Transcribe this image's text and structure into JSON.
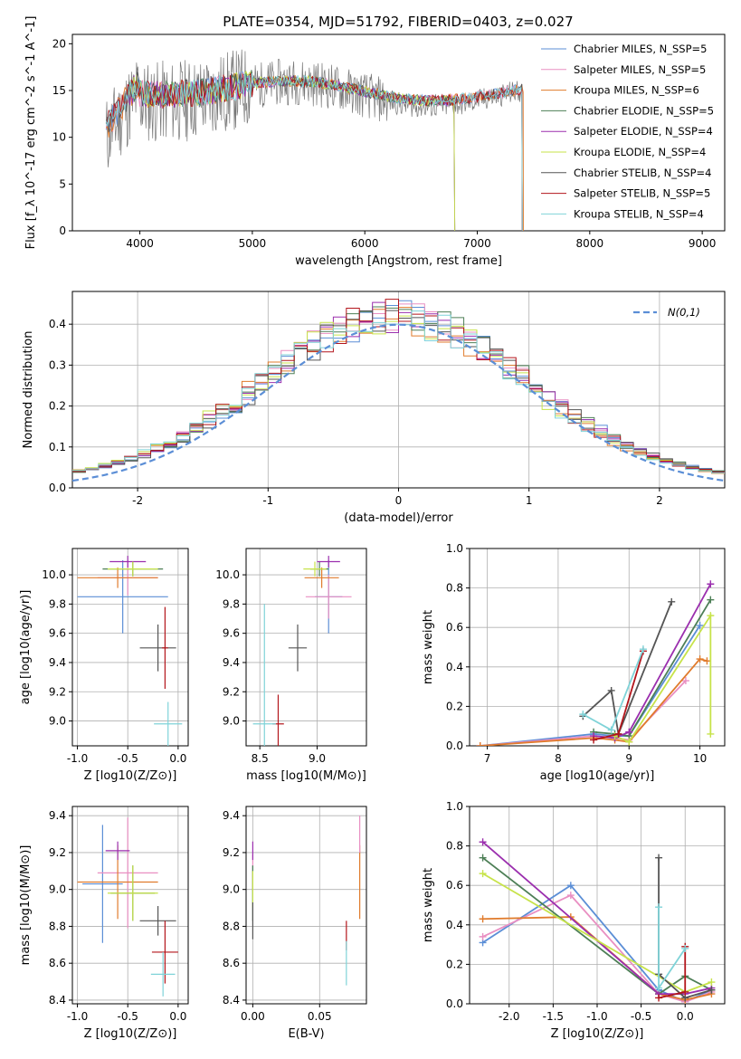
{
  "figure_title": "PLATE=0354, MJD=51792, FIBERID=0403, z=0.027",
  "colors": {
    "chabrier_miles": "#5b8ed6",
    "salpeter_miles": "#e98fc2",
    "kroupa_miles": "#e07b2c",
    "chabrier_elodie": "#4d7f56",
    "salpeter_elodie": "#9b2fae",
    "kroupa_elodie": "#c7e34a",
    "chabrier_stelib": "#555555",
    "salpeter_stelib": "#b3151b",
    "kroupa_stelib": "#7fd3d8",
    "data": "#777777"
  },
  "chart_data": [
    {
      "id": "spectrum",
      "type": "line",
      "title": "PLATE=0354, MJD=51792, FIBERID=0403, z=0.027",
      "xlabel": "wavelength [Angstrom, rest frame]",
      "ylabel": "Flux [f_λ 10^-17 erg cm^-2 s^-1 A^-1]",
      "xlim": [
        3400,
        9200
      ],
      "ylim": [
        0,
        21
      ],
      "xticks": [
        4000,
        5000,
        6000,
        7000,
        8000,
        9000
      ],
      "yticks": [
        0,
        5,
        10,
        15,
        20
      ],
      "legend_placement": "top-right",
      "series": [
        {
          "name": "Chabrier MILES, N_SSP=5",
          "key": "chabrier_miles",
          "x": [
            3700,
            7400
          ],
          "y": [
            14.5,
            14.5
          ]
        },
        {
          "name": "Salpeter MILES, N_SSP=5",
          "key": "salpeter_miles",
          "x": [
            3700,
            7400
          ],
          "y": [
            14.5,
            14.5
          ]
        },
        {
          "name": "Kroupa MILES, N_SSP=6",
          "key": "kroupa_miles",
          "x": [
            3700,
            7410
          ],
          "y": [
            14.5,
            14.5
          ]
        },
        {
          "name": "Chabrier ELODIE, N_SSP=5",
          "key": "chabrier_elodie",
          "x": [
            3900,
            6800
          ],
          "y": [
            15.0,
            15.0
          ]
        },
        {
          "name": "Salpeter ELODIE, N_SSP=4",
          "key": "salpeter_elodie",
          "x": [
            3900,
            6800
          ],
          "y": [
            15.0,
            15.0
          ]
        },
        {
          "name": "Kroupa ELODIE, N_SSP=4",
          "key": "kroupa_elodie",
          "x": [
            3900,
            6800
          ],
          "y": [
            15.0,
            15.0
          ]
        },
        {
          "name": "Chabrier STELIB, N_SSP=4",
          "key": "chabrier_stelib",
          "x": [
            3700,
            7400
          ],
          "y": [
            14.8,
            14.8
          ]
        },
        {
          "name": "Salpeter STELIB, N_SSP=5",
          "key": "salpeter_stelib",
          "x": [
            3700,
            7400
          ],
          "y": [
            14.8,
            14.8
          ]
        },
        {
          "name": "Kroupa STELIB, N_SSP=4",
          "key": "kroupa_stelib",
          "x": [
            3700,
            7400
          ],
          "y": [
            14.8,
            14.8
          ]
        }
      ]
    },
    {
      "id": "residuals",
      "type": "line",
      "xlabel": "(data-model)/error",
      "ylabel": "Normed distribution",
      "xlim": [
        -2.5,
        2.5
      ],
      "ylim": [
        0,
        0.48
      ],
      "xticks": [
        -2,
        -1,
        0,
        1,
        2
      ],
      "yticks": [
        0.0,
        0.1,
        0.2,
        0.3,
        0.4
      ],
      "legend_placement": "top-right",
      "reference_name": "N(0,1)",
      "reference": {
        "mu": 0,
        "sigma": 1
      },
      "grid": true
    },
    {
      "id": "age_vs_Z",
      "type": "scatter",
      "xlabel": "Z [log10(Z/Z⊙)]",
      "ylabel": "age [log10(age/yr)]",
      "xlim": [
        -1.05,
        0.1
      ],
      "ylim": [
        8.83,
        10.18
      ],
      "xticks": [
        -1.0,
        -0.5,
        0.0
      ],
      "yticks": [
        9.0,
        9.2,
        9.4,
        9.6,
        9.8,
        10.0
      ],
      "grid": true,
      "points": [
        {
          "key": "chabrier_miles",
          "x": -0.55,
          "y": 9.85,
          "xerr": 0.45,
          "yerr": 0.25
        },
        {
          "key": "salpeter_miles",
          "x": -0.5,
          "y": 9.98,
          "xerr": 0.3,
          "yerr": 0.12
        },
        {
          "key": "kroupa_miles",
          "x": -0.6,
          "y": 9.98,
          "xerr": 0.4,
          "yerr": 0.07
        },
        {
          "key": "chabrier_elodie",
          "x": -0.45,
          "y": 10.04,
          "xerr": 0.3,
          "yerr": 0.05
        },
        {
          "key": "salpeter_elodie",
          "x": -0.5,
          "y": 10.09,
          "xerr": 0.18,
          "yerr": 0.04
        },
        {
          "key": "kroupa_elodie",
          "x": -0.45,
          "y": 10.04,
          "xerr": 0.25,
          "yerr": 0.05
        },
        {
          "key": "chabrier_stelib",
          "x": -0.2,
          "y": 9.5,
          "xerr": 0.18,
          "yerr": 0.16
        },
        {
          "key": "salpeter_stelib",
          "x": -0.13,
          "y": 9.5,
          "xerr": 0.03,
          "yerr": 0.28
        },
        {
          "key": "kroupa_stelib",
          "x": -0.1,
          "y": 8.98,
          "xerr": 0.14,
          "yerr": 0.15
        }
      ]
    },
    {
      "id": "age_vs_mass",
      "type": "scatter",
      "xlabel": "mass [log10(M/M⊙)]",
      "ylabel": "",
      "xlim": [
        8.38,
        9.43
      ],
      "ylim": [
        8.83,
        10.18
      ],
      "xticks": [
        8.5,
        9.0
      ],
      "yticks": [
        9.0,
        9.2,
        9.4,
        9.6,
        9.8,
        10.0
      ],
      "grid": true,
      "points": [
        {
          "key": "chabrier_miles",
          "x": 9.1,
          "y": 9.85,
          "xerr": 0.12,
          "yerr": 0.25
        },
        {
          "key": "salpeter_miles",
          "x": 9.1,
          "y": 9.85,
          "xerr": 0.2,
          "yerr": 0.15
        },
        {
          "key": "kroupa_miles",
          "x": 9.04,
          "y": 9.98,
          "xerr": 0.15,
          "yerr": 0.07
        },
        {
          "key": "chabrier_elodie",
          "x": 9.02,
          "y": 10.04,
          "xerr": 0.08,
          "yerr": 0.05
        },
        {
          "key": "salpeter_elodie",
          "x": 9.1,
          "y": 10.09,
          "xerr": 0.1,
          "yerr": 0.04
        },
        {
          "key": "kroupa_elodie",
          "x": 8.98,
          "y": 10.04,
          "xerr": 0.1,
          "yerr": 0.05
        },
        {
          "key": "chabrier_stelib",
          "x": 8.83,
          "y": 9.5,
          "xerr": 0.08,
          "yerr": 0.16
        },
        {
          "key": "salpeter_stelib",
          "x": 8.66,
          "y": 8.98,
          "xerr": 0.05,
          "yerr": 0.2
        },
        {
          "key": "kroupa_stelib",
          "x": 8.54,
          "y": 8.98,
          "xerr": 0.1,
          "yerr": 0.82
        }
      ]
    },
    {
      "id": "weight_vs_age",
      "type": "line",
      "xlabel": "age [log10(age/yr)]",
      "ylabel": "mass weight",
      "xlim": [
        6.75,
        10.35
      ],
      "ylim": [
        0,
        1.0
      ],
      "xticks": [
        7,
        8,
        9,
        10
      ],
      "yticks": [
        0.0,
        0.2,
        0.4,
        0.6,
        0.8,
        1.0
      ],
      "grid": true,
      "series": [
        {
          "key": "chabrier_miles",
          "x": [
            6.9,
            8.5,
            8.8,
            9.0,
            10.0
          ],
          "y": [
            0.0,
            0.06,
            0.05,
            0.05,
            0.61
          ]
        },
        {
          "key": "salpeter_miles",
          "x": [
            6.9,
            8.5,
            8.8,
            9.0,
            9.8
          ],
          "y": [
            0.0,
            0.05,
            0.04,
            0.03,
            0.33
          ]
        },
        {
          "key": "kroupa_miles",
          "x": [
            6.9,
            8.5,
            8.8,
            9.0,
            10.0,
            10.1
          ],
          "y": [
            0.0,
            0.04,
            0.03,
            0.02,
            0.44,
            0.43
          ]
        },
        {
          "key": "chabrier_elodie",
          "x": [
            8.5,
            8.8,
            9.0,
            10.15
          ],
          "y": [
            0.07,
            0.06,
            0.05,
            0.74
          ]
        },
        {
          "key": "salpeter_elodie",
          "x": [
            8.5,
            8.8,
            9.0,
            10.15
          ],
          "y": [
            0.05,
            0.04,
            0.07,
            0.82
          ]
        },
        {
          "key": "kroupa_elodie",
          "x": [
            8.8,
            9.0,
            10.15,
            10.15
          ],
          "y": [
            0.05,
            0.02,
            0.66,
            0.06
          ]
        },
        {
          "key": "chabrier_stelib",
          "x": [
            8.35,
            8.75,
            8.85,
            9.6
          ],
          "y": [
            0.15,
            0.28,
            0.06,
            0.73
          ]
        },
        {
          "key": "salpeter_stelib",
          "x": [
            8.5,
            8.85,
            9.2
          ],
          "y": [
            0.03,
            0.06,
            0.48
          ]
        },
        {
          "key": "kroupa_stelib",
          "x": [
            8.35,
            8.75,
            9.2
          ],
          "y": [
            0.16,
            0.08,
            0.49
          ]
        }
      ]
    },
    {
      "id": "mass_vs_Z",
      "type": "scatter",
      "xlabel": "Z [log10(Z/Z⊙)]",
      "ylabel": "mass [log10(M/M⊙)]",
      "xlim": [
        -1.05,
        0.1
      ],
      "ylim": [
        8.38,
        9.45
      ],
      "xticks": [
        -1.0,
        -0.5,
        0.0
      ],
      "yticks": [
        8.4,
        8.6,
        8.8,
        9.0,
        9.2,
        9.4
      ],
      "grid": true,
      "points": [
        {
          "key": "chabrier_miles",
          "x": -0.75,
          "y": 9.03,
          "xerr": 0.2,
          "yerr": 0.32
        },
        {
          "key": "salpeter_miles",
          "x": -0.5,
          "y": 9.09,
          "xerr": 0.3,
          "yerr": 0.3
        },
        {
          "key": "kroupa_miles",
          "x": -0.6,
          "y": 9.04,
          "xerr": 0.4,
          "yerr": 0.2
        },
        {
          "key": "chabrier_elodie",
          "x": -0.45,
          "y": 8.98,
          "xerr": 0.22,
          "yerr": 0.15
        },
        {
          "key": "salpeter_elodie",
          "x": -0.6,
          "y": 9.21,
          "xerr": 0.12,
          "yerr": 0.05
        },
        {
          "key": "kroupa_elodie",
          "x": -0.45,
          "y": 8.98,
          "xerr": 0.25,
          "yerr": 0.15
        },
        {
          "key": "chabrier_stelib",
          "x": -0.2,
          "y": 8.83,
          "xerr": 0.18,
          "yerr": 0.08
        },
        {
          "key": "salpeter_stelib",
          "x": -0.13,
          "y": 8.66,
          "xerr": 0.13,
          "yerr": 0.17
        },
        {
          "key": "kroupa_stelib",
          "x": -0.15,
          "y": 8.54,
          "xerr": 0.12,
          "yerr": 0.12
        }
      ]
    },
    {
      "id": "mass_vs_EBV",
      "type": "scatter",
      "xlabel": "E(B-V)",
      "ylabel": "",
      "xlim": [
        -0.005,
        0.085
      ],
      "ylim": [
        8.38,
        9.45
      ],
      "xticks": [
        0.0,
        0.05
      ],
      "yticks": [
        8.4,
        8.6,
        8.8,
        9.0,
        9.2,
        9.4
      ],
      "grid": true,
      "points": [
        {
          "key": "chabrier_miles",
          "x": 0.0,
          "y": 9.03,
          "xerr": 0,
          "yerr": 0.1
        },
        {
          "key": "salpeter_miles",
          "x": 0.0,
          "y": 9.09,
          "xerr": 0,
          "yerr": 0.1
        },
        {
          "key": "kroupa_miles",
          "x": 0.08,
          "y": 9.04,
          "xerr": 0,
          "yerr": 0.2
        },
        {
          "key": "chabrier_elodie",
          "x": 0.0,
          "y": 8.98,
          "xerr": 0,
          "yerr": 0.15
        },
        {
          "key": "salpeter_elodie",
          "x": 0.0,
          "y": 9.21,
          "xerr": 0,
          "yerr": 0.05
        },
        {
          "key": "kroupa_elodie",
          "x": 0.0,
          "y": 9.0,
          "xerr": 0,
          "yerr": 0.1
        },
        {
          "key": "chabrier_stelib",
          "x": 0.0,
          "y": 8.83,
          "xerr": 0,
          "yerr": 0.1
        },
        {
          "key": "salpeter_stelib",
          "x": 0.07,
          "y": 8.75,
          "xerr": 0,
          "yerr": 0.08
        },
        {
          "key": "kroupa_stelib",
          "x": 0.07,
          "y": 8.6,
          "xerr": 0,
          "yerr": 0.12
        },
        {
          "key": "salpeter_miles",
          "x": 0.08,
          "y": 9.3,
          "xerr": 0,
          "yerr": 0.1
        }
      ]
    },
    {
      "id": "weight_vs_Z",
      "type": "line",
      "xlabel": "Z [log10(Z/Z⊙)]",
      "ylabel": "mass weight",
      "xlim": [
        -2.45,
        0.45
      ],
      "ylim": [
        0,
        1.0
      ],
      "xticks": [
        -2.0,
        -1.5,
        -1.0,
        -0.5,
        0.0
      ],
      "yticks": [
        0.0,
        0.2,
        0.4,
        0.6,
        0.8,
        1.0
      ],
      "grid": true,
      "series": [
        {
          "key": "chabrier_miles",
          "x": [
            -2.3,
            -1.3,
            -0.3,
            0.0,
            0.3
          ],
          "y": [
            0.31,
            0.6,
            0.07,
            0.01,
            0.07
          ]
        },
        {
          "key": "salpeter_miles",
          "x": [
            -2.3,
            -1.3,
            -0.3,
            0.0,
            0.3
          ],
          "y": [
            0.34,
            0.55,
            0.05,
            0.01,
            0.06
          ]
        },
        {
          "key": "kroupa_miles",
          "x": [
            -2.3,
            -1.3,
            -0.3,
            0.0,
            0.3
          ],
          "y": [
            0.43,
            0.44,
            0.05,
            0.02,
            0.05
          ]
        },
        {
          "key": "chabrier_elodie",
          "x": [
            -2.3,
            -0.3,
            0.0,
            0.3
          ],
          "y": [
            0.74,
            0.05,
            0.14,
            0.07
          ]
        },
        {
          "key": "salpeter_elodie",
          "x": [
            -2.3,
            -0.3,
            0.0,
            0.3
          ],
          "y": [
            0.82,
            0.05,
            0.05,
            0.08
          ]
        },
        {
          "key": "kroupa_elodie",
          "x": [
            -2.3,
            0.0,
            0.3
          ],
          "y": [
            0.66,
            0.06,
            0.11
          ]
        },
        {
          "key": "chabrier_stelib",
          "x": [
            -0.3,
            -0.3,
            0.0,
            0.3
          ],
          "y": [
            0.74,
            0.15,
            0.03,
            0.07
          ]
        },
        {
          "key": "salpeter_stelib",
          "x": [
            -0.3,
            0.0,
            0.0
          ],
          "y": [
            0.03,
            0.06,
            0.29
          ]
        },
        {
          "key": "kroupa_stelib",
          "x": [
            -0.3,
            -0.3,
            0.0
          ],
          "y": [
            0.49,
            0.08,
            0.28
          ]
        }
      ]
    }
  ]
}
